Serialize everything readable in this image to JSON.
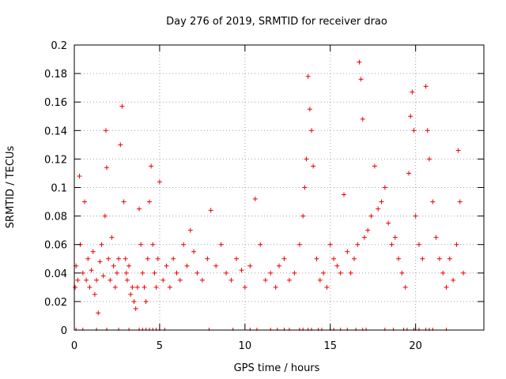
{
  "chart_data": {
    "type": "scatter",
    "title": "Day 276 of 2019, SRMTID for receiver drao",
    "xlabel": "GPS time / hours",
    "ylabel": "SRMTID / TECUs",
    "xlim": [
      0,
      24
    ],
    "ylim": [
      0,
      0.2
    ],
    "xticks": [
      0,
      5,
      10,
      15,
      20
    ],
    "xtick_labels": [
      "0",
      "5",
      "10",
      "15",
      "20"
    ],
    "yticks": [
      0,
      0.02,
      0.04,
      0.06,
      0.08,
      0.1,
      0.12,
      0.14,
      0.16,
      0.18,
      0.2
    ],
    "ytick_labels": [
      "0",
      "0.02",
      "0.04",
      "0.06",
      "0.08",
      "0.1",
      "0.12",
      "0.14",
      "0.16",
      "0.18",
      "0.2"
    ],
    "grid": true,
    "marker": "+",
    "color": "#ee0000",
    "series": [
      {
        "name": "SRMTID",
        "x": [
          0.05,
          0.1,
          0.2,
          0.3,
          0.35,
          0.5,
          0.6,
          0.7,
          0.8,
          0.9,
          1.0,
          1.1,
          1.2,
          1.3,
          1.4,
          1.5,
          1.6,
          1.7,
          1.8,
          1.85,
          1.9,
          2.0,
          2.1,
          2.2,
          2.3,
          2.4,
          2.5,
          2.6,
          2.7,
          2.8,
          2.9,
          3.0,
          3.05,
          3.1,
          3.2,
          3.3,
          3.4,
          3.5,
          3.6,
          3.7,
          3.8,
          3.9,
          4.0,
          4.1,
          4.2,
          4.3,
          4.4,
          4.5,
          4.6,
          4.7,
          4.8,
          4.9,
          5.0,
          5.2,
          5.4,
          5.6,
          5.8,
          6.0,
          6.2,
          6.4,
          6.6,
          6.8,
          7.0,
          7.2,
          7.5,
          7.8,
          8.0,
          8.3,
          8.6,
          8.9,
          9.2,
          9.5,
          9.8,
          10.0,
          10.3,
          10.6,
          10.9,
          11.2,
          11.5,
          11.8,
          12.0,
          12.3,
          12.6,
          12.9,
          13.2,
          13.4,
          13.5,
          13.6,
          13.7,
          13.8,
          13.9,
          14.0,
          14.2,
          14.4,
          14.6,
          14.8,
          15.0,
          15.2,
          15.4,
          15.6,
          15.8,
          16.0,
          16.2,
          16.4,
          16.6,
          16.7,
          16.8,
          16.9,
          17.0,
          17.2,
          17.4,
          17.6,
          17.8,
          18.0,
          18.2,
          18.4,
          18.6,
          18.8,
          19.0,
          19.2,
          19.4,
          19.6,
          19.7,
          19.8,
          19.9,
          20.0,
          20.2,
          20.4,
          20.6,
          20.7,
          20.8,
          21.0,
          21.2,
          21.4,
          21.6,
          21.8,
          22.0,
          22.2,
          22.4,
          22.5,
          22.6,
          22.8
        ],
        "y": [
          0.03,
          0.045,
          0.035,
          0.108,
          0.06,
          0.04,
          0.09,
          0.035,
          0.05,
          0.03,
          0.042,
          0.055,
          0.025,
          0.035,
          0.012,
          0.048,
          0.06,
          0.038,
          0.08,
          0.14,
          0.114,
          0.05,
          0.035,
          0.065,
          0.045,
          0.03,
          0.04,
          0.05,
          0.13,
          0.157,
          0.09,
          0.05,
          0.04,
          0.035,
          0.045,
          0.025,
          0.03,
          0.02,
          0.015,
          0.03,
          0.085,
          0.06,
          0.04,
          0.03,
          0.02,
          0.05,
          0.09,
          0.115,
          0.06,
          0.04,
          0.03,
          0.05,
          0.104,
          0.035,
          0.045,
          0.03,
          0.05,
          0.04,
          0.035,
          0.06,
          0.045,
          0.07,
          0.055,
          0.04,
          0.035,
          0.05,
          0.084,
          0.045,
          0.06,
          0.04,
          0.035,
          0.05,
          0.042,
          0.03,
          0.045,
          0.092,
          0.06,
          0.035,
          0.04,
          0.03,
          0.045,
          0.05,
          0.035,
          0.04,
          0.06,
          0.08,
          0.1,
          0.12,
          0.178,
          0.155,
          0.14,
          0.115,
          0.05,
          0.035,
          0.04,
          0.03,
          0.06,
          0.05,
          0.045,
          0.04,
          0.095,
          0.055,
          0.04,
          0.05,
          0.06,
          0.188,
          0.176,
          0.148,
          0.065,
          0.07,
          0.08,
          0.115,
          0.085,
          0.09,
          0.1,
          0.075,
          0.06,
          0.065,
          0.05,
          0.04,
          0.03,
          0.11,
          0.15,
          0.167,
          0.14,
          0.08,
          0.06,
          0.05,
          0.171,
          0.14,
          0.12,
          0.09,
          0.065,
          0.05,
          0.04,
          0.03,
          0.05,
          0.035,
          0.06,
          0.126,
          0.09,
          0.04
        ]
      }
    ],
    "zero_marks_x": [
      0.1,
      0.5,
      1.3,
      1.9,
      2.6,
      3.2,
      3.8,
      4.0,
      4.2,
      4.4,
      4.6,
      4.8,
      5.0,
      5.3,
      7.9,
      9.3,
      10.3,
      10.7,
      11.5,
      11.9,
      12.3,
      12.6,
      13.2,
      13.4,
      13.7,
      13.9,
      14.3,
      14.5,
      15.0,
      15.2,
      15.6,
      16.0,
      16.5,
      16.9,
      17.1,
      18.2,
      18.7,
      19.3,
      19.5,
      19.9,
      20.0,
      20.2,
      20.6,
      20.8,
      21.0,
      21.8
    ]
  }
}
